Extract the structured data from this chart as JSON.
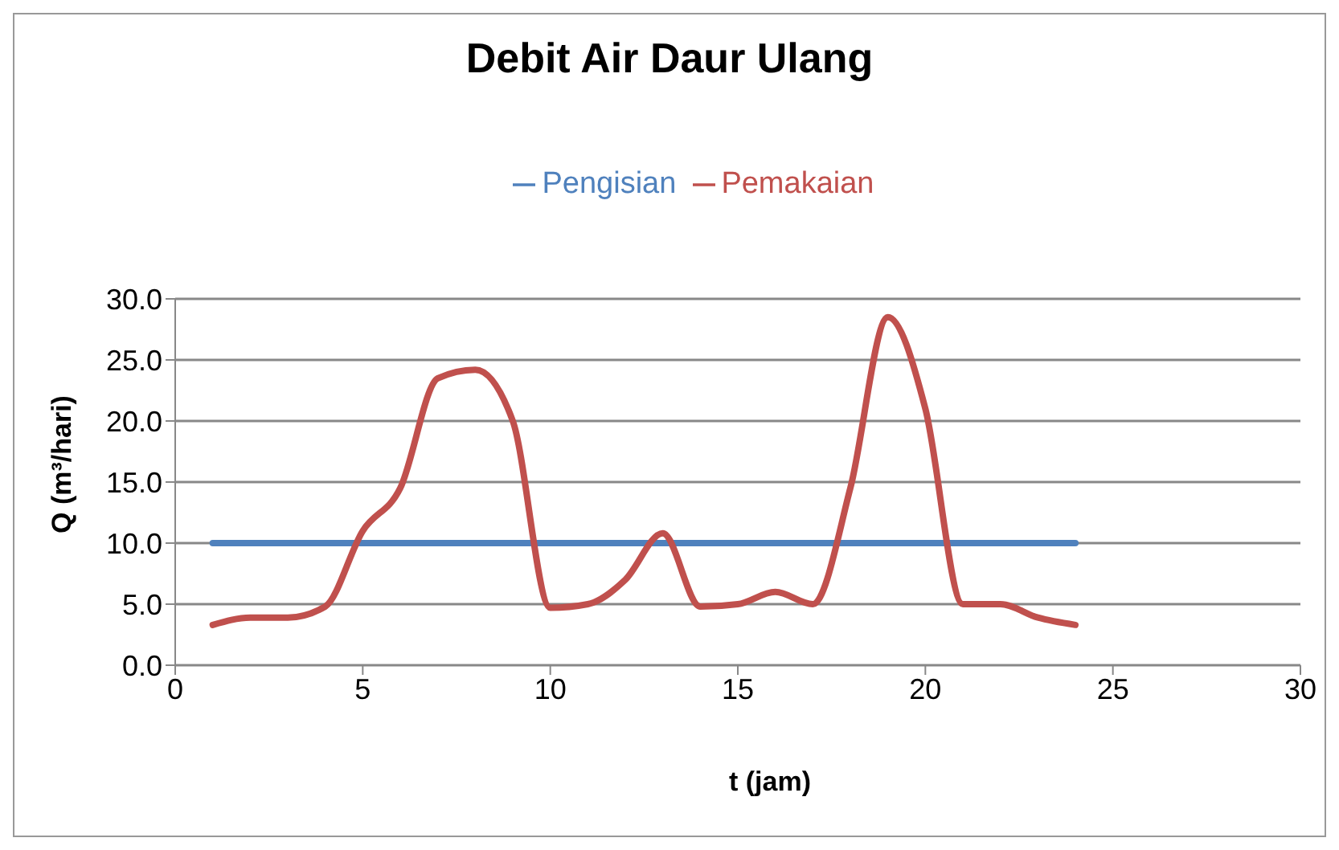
{
  "chart_data": {
    "type": "line",
    "title": "Debit Air Daur Ulang",
    "xlabel": "t (jam)",
    "ylabel": "Q (m³/hari)",
    "x": [
      1,
      2,
      3,
      4,
      5,
      6,
      7,
      8,
      9,
      10,
      11,
      12,
      13,
      14,
      15,
      16,
      17,
      18,
      19,
      20,
      21,
      22,
      23,
      24
    ],
    "series": [
      {
        "name": "Pengisian",
        "color": "#4f81bd",
        "values": [
          10,
          10,
          10,
          10,
          10,
          10,
          10,
          10,
          10,
          10,
          10,
          10,
          10,
          10,
          10,
          10,
          10,
          10,
          10,
          10,
          10,
          10,
          10,
          10
        ]
      },
      {
        "name": "Pemakaian",
        "color": "#c0504d",
        "values": [
          3.3,
          3.9,
          3.9,
          4.8,
          11,
          14.5,
          23.5,
          24.2,
          20,
          4.7,
          5,
          7,
          10.8,
          4.8,
          5,
          6,
          5,
          14.5,
          28.5,
          21,
          5,
          5,
          3.9,
          3.3
        ]
      }
    ],
    "xlim": [
      0,
      30
    ],
    "xticks": [
      0,
      5,
      10,
      15,
      20,
      25,
      30
    ],
    "ylim": [
      0,
      30
    ],
    "yticks": [
      {
        "value": 0,
        "label": "0.0"
      },
      {
        "value": 5,
        "label": "5.0"
      },
      {
        "value": 10,
        "label": "10.0"
      },
      {
        "value": 15,
        "label": "15.0"
      },
      {
        "value": 20,
        "label": "20.0"
      },
      {
        "value": 25,
        "label": "25.0"
      },
      {
        "value": 30,
        "label": "30.0"
      }
    ],
    "grid": "y",
    "legend": "top",
    "marker": "none",
    "line_style": "solid"
  }
}
